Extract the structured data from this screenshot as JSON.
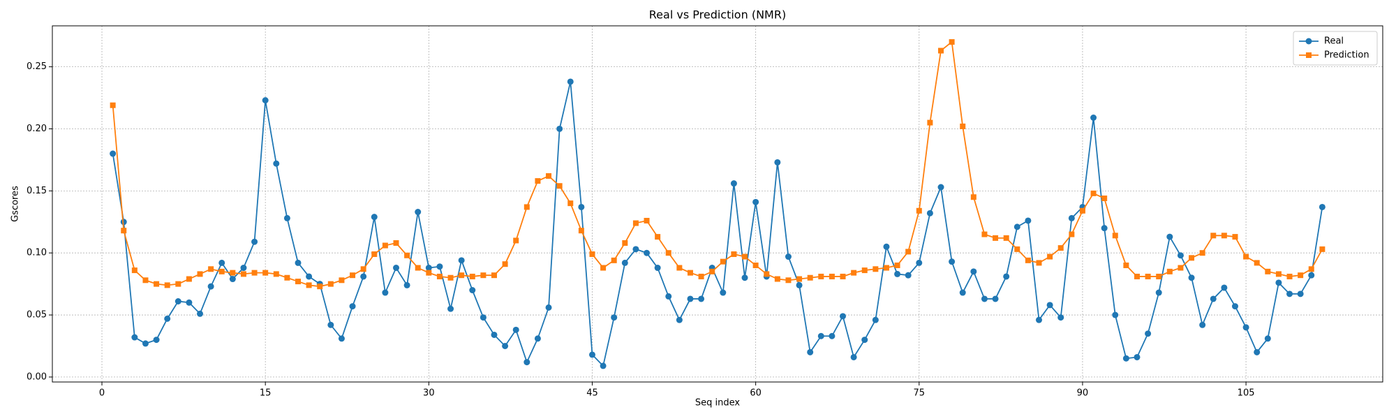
{
  "chart_data": {
    "type": "line",
    "title": "Real vs Prediction (NMR)",
    "x_label": "Seq index",
    "y_label": "Gscores",
    "x": [
      1,
      2,
      3,
      4,
      5,
      6,
      7,
      8,
      9,
      10,
      11,
      12,
      13,
      14,
      15,
      16,
      17,
      18,
      19,
      20,
      21,
      22,
      23,
      24,
      25,
      26,
      27,
      28,
      29,
      30,
      31,
      32,
      33,
      34,
      35,
      36,
      37,
      38,
      39,
      40,
      41,
      42,
      43,
      44,
      45,
      46,
      47,
      48,
      49,
      50,
      51,
      52,
      53,
      54,
      55,
      56,
      57,
      58,
      59,
      60,
      61,
      62,
      63,
      64,
      65,
      66,
      67,
      68,
      69,
      70,
      71,
      72,
      73,
      74,
      75,
      76,
      77,
      78,
      79,
      80,
      81,
      82,
      83,
      84,
      85,
      86,
      87,
      88,
      89,
      90,
      91,
      92,
      93,
      94,
      95,
      96,
      97,
      98,
      99,
      100,
      101,
      102,
      103,
      104,
      105,
      106,
      107,
      108,
      109,
      110,
      111,
      112
    ],
    "series": [
      {
        "name": "Real",
        "color": "#1f77b4",
        "marker": "circle",
        "values": [
          0.18,
          0.125,
          0.032,
          0.027,
          0.03,
          0.047,
          0.061,
          0.06,
          0.051,
          0.073,
          0.092,
          0.079,
          0.088,
          0.109,
          0.223,
          0.172,
          0.128,
          0.092,
          0.081,
          0.075,
          0.042,
          0.031,
          0.057,
          0.081,
          0.129,
          0.068,
          0.088,
          0.074,
          0.133,
          0.088,
          0.089,
          0.055,
          0.094,
          0.07,
          0.048,
          0.034,
          0.025,
          0.038,
          0.012,
          0.031,
          0.056,
          0.2,
          0.238,
          0.137,
          0.018,
          0.009,
          0.048,
          0.092,
          0.103,
          0.1,
          0.088,
          0.065,
          0.046,
          0.063,
          0.063,
          0.088,
          0.068,
          0.156,
          0.08,
          0.141,
          0.081,
          0.173,
          0.097,
          0.074,
          0.02,
          0.033,
          0.033,
          0.049,
          0.016,
          0.03,
          0.046,
          0.105,
          0.083,
          0.082,
          0.092,
          0.132,
          0.153,
          0.093,
          0.068,
          0.085,
          0.063,
          0.063,
          0.081,
          0.121,
          0.126,
          0.046,
          0.058,
          0.048,
          0.128,
          0.137,
          0.209,
          0.12,
          0.05,
          0.015,
          0.016,
          0.035,
          0.068,
          0.113,
          0.098,
          0.08,
          0.042,
          0.063,
          0.072,
          0.057,
          0.04,
          0.02,
          0.031,
          0.076,
          0.067,
          0.067,
          0.082,
          0.137
        ]
      },
      {
        "name": "Prediction",
        "color": "#ff7f0e",
        "marker": "square",
        "values": [
          0.219,
          0.118,
          0.086,
          0.078,
          0.075,
          0.074,
          0.075,
          0.079,
          0.083,
          0.087,
          0.085,
          0.084,
          0.083,
          0.084,
          0.084,
          0.083,
          0.08,
          0.077,
          0.074,
          0.073,
          0.075,
          0.078,
          0.082,
          0.087,
          0.099,
          0.106,
          0.108,
          0.098,
          0.088,
          0.084,
          0.081,
          0.08,
          0.082,
          0.081,
          0.082,
          0.082,
          0.091,
          0.11,
          0.137,
          0.158,
          0.162,
          0.154,
          0.14,
          0.118,
          0.099,
          0.088,
          0.094,
          0.108,
          0.124,
          0.126,
          0.113,
          0.1,
          0.088,
          0.084,
          0.081,
          0.085,
          0.093,
          0.099,
          0.097,
          0.09,
          0.083,
          0.079,
          0.078,
          0.079,
          0.08,
          0.081,
          0.081,
          0.081,
          0.084,
          0.086,
          0.087,
          0.088,
          0.09,
          0.101,
          0.134,
          0.205,
          0.263,
          0.27,
          0.202,
          0.145,
          0.115,
          0.112,
          0.112,
          0.103,
          0.094,
          0.092,
          0.097,
          0.104,
          0.115,
          0.134,
          0.148,
          0.144,
          0.114,
          0.09,
          0.081,
          0.081,
          0.081,
          0.085,
          0.088,
          0.096,
          0.1,
          0.114,
          0.114,
          0.113,
          0.097,
          0.092,
          0.085,
          0.083,
          0.081,
          0.082,
          0.087,
          0.103
        ]
      }
    ],
    "xlim": [
      -4.55,
      117.55
    ],
    "ylim": [
      -0.004,
      0.283
    ],
    "xticks": [
      0,
      15,
      30,
      45,
      60,
      75,
      90,
      105
    ],
    "yticks": [
      {
        "value": 0,
        "label": "0.00"
      },
      {
        "value": 0.05,
        "label": "0.05"
      },
      {
        "value": 0.1,
        "label": "0.10"
      },
      {
        "value": 0.15,
        "label": "0.15"
      },
      {
        "value": 0.2,
        "label": "0.20"
      },
      {
        "value": 0.25,
        "label": "0.25"
      }
    ],
    "grid": true,
    "legend": "upper right"
  }
}
